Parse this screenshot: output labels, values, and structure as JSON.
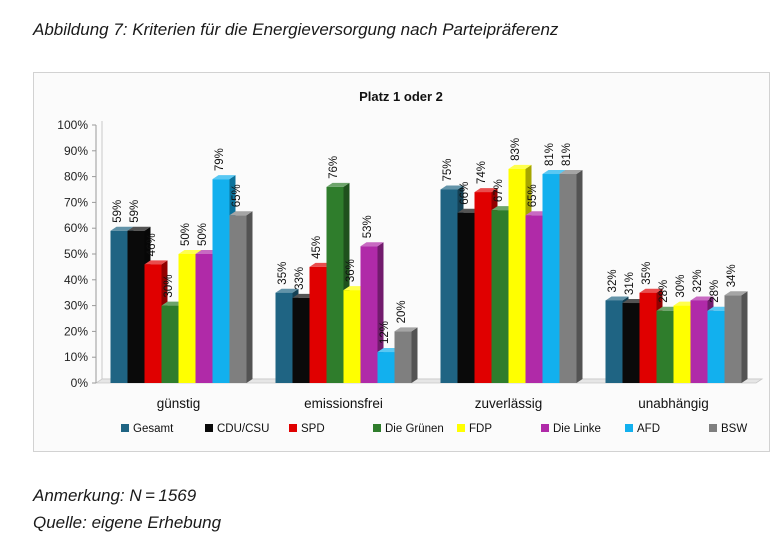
{
  "figure": {
    "title": "Abbildung 7: Kriterien für die Energieversorgung nach Parteipräferenz",
    "note": "Anmerkung: N = 1569",
    "source": "Quelle: eigene Erhebung"
  },
  "chart_data": {
    "type": "bar",
    "style": "3d-clustered-columns",
    "title": "Platz 1 oder 2",
    "xlabel": "",
    "ylabel": "",
    "ylim": [
      0,
      100
    ],
    "yticks": [
      "0%",
      "10%",
      "20%",
      "30%",
      "40%",
      "50%",
      "60%",
      "70%",
      "80%",
      "90%",
      "100%"
    ],
    "grid": false,
    "legend_position": "bottom",
    "value_suffix": "%",
    "categories": [
      "günstig",
      "emissionsfrei",
      "zuverlässig",
      "unabhängig"
    ],
    "series": [
      {
        "name": "Gesamt",
        "color": "#1f6483",
        "values": [
          59,
          35,
          75,
          32
        ]
      },
      {
        "name": "CDU/CSU",
        "color": "#0a0a0a",
        "values": [
          59,
          33,
          66,
          31
        ]
      },
      {
        "name": "SPD",
        "color": "#e00000",
        "values": [
          46,
          45,
          74,
          35
        ]
      },
      {
        "name": "Die Grünen",
        "color": "#2f7d2c",
        "values": [
          30,
          76,
          67,
          28
        ]
      },
      {
        "name": "FDP",
        "color": "#ffff00",
        "values": [
          50,
          36,
          83,
          30
        ]
      },
      {
        "name": "Die Linke",
        "color": "#b02aa8",
        "values": [
          50,
          53,
          65,
          32
        ]
      },
      {
        "name": "AFD",
        "color": "#12b0ee",
        "values": [
          79,
          12,
          81,
          28
        ]
      },
      {
        "name": "BSW",
        "color": "#7f7f7f",
        "values": [
          65,
          20,
          81,
          34
        ]
      }
    ]
  }
}
